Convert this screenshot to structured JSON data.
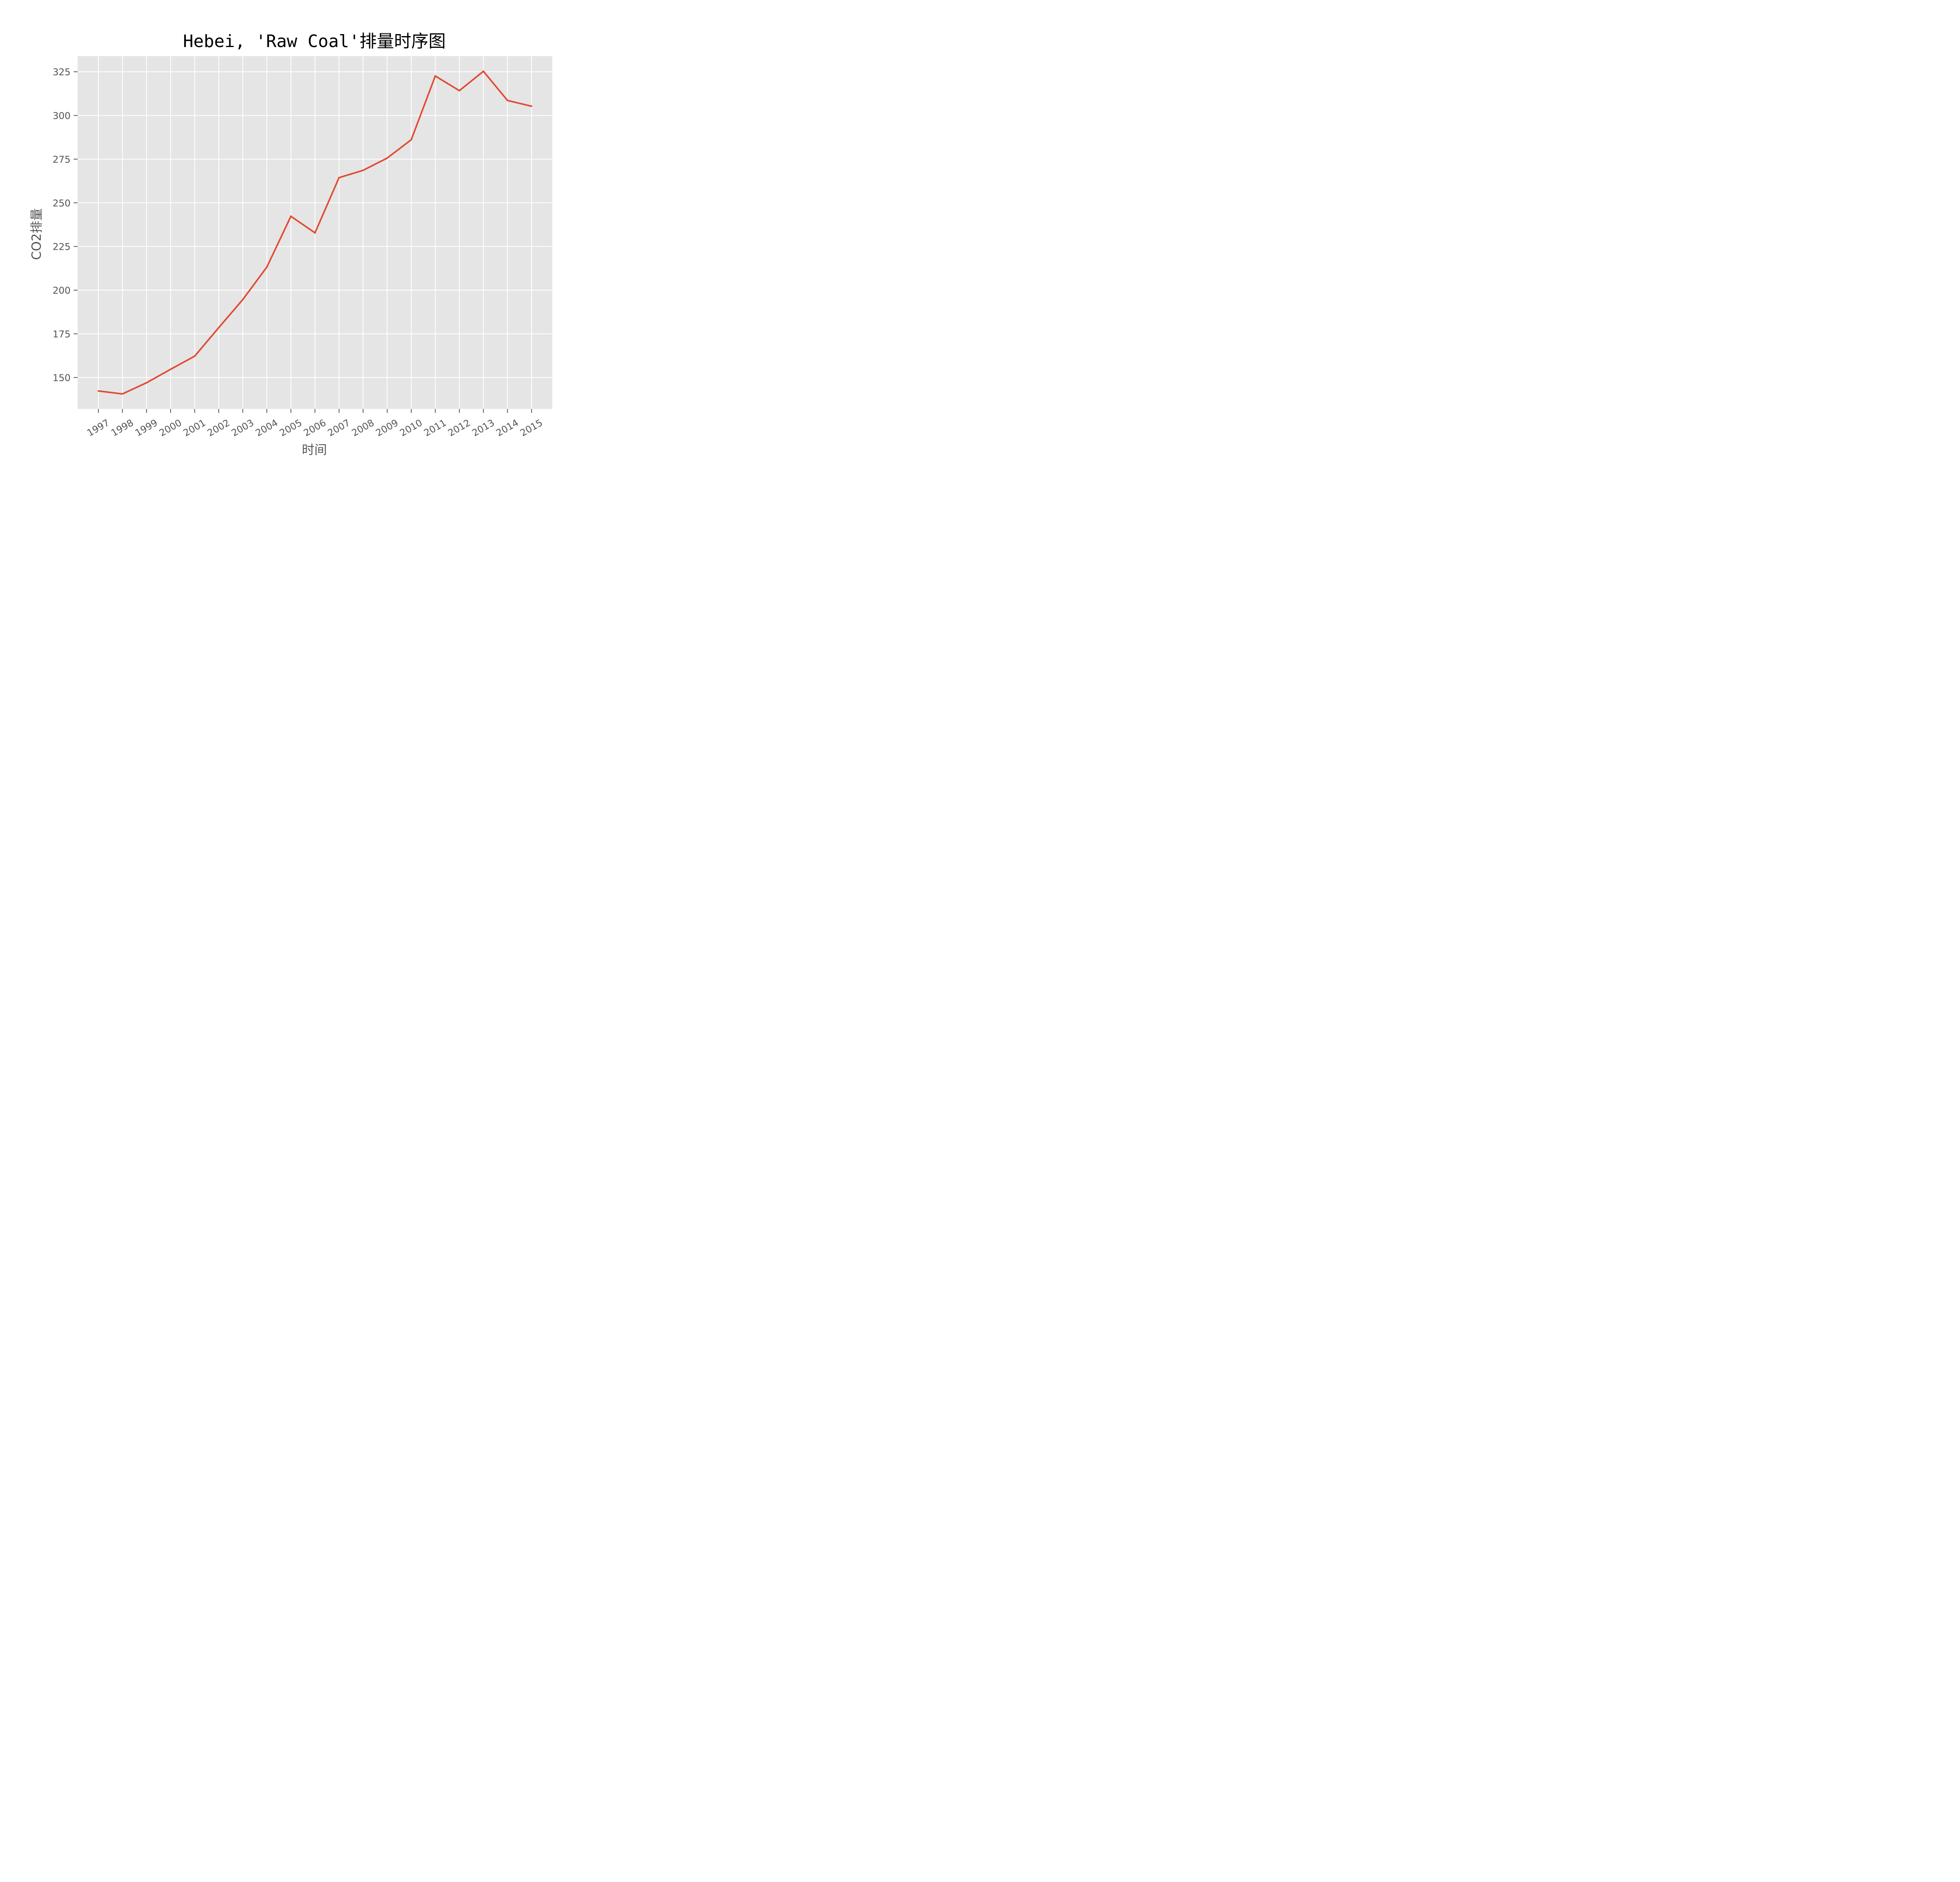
{
  "chart_data": {
    "type": "line",
    "title": "Hebei, 'Raw Coal'排量时序图",
    "xlabel": "时间",
    "ylabel": "CO2排量",
    "x": [
      "1997",
      "1998",
      "1999",
      "2000",
      "2001",
      "2002",
      "2003",
      "2004",
      "2005",
      "2006",
      "2007",
      "2008",
      "2009",
      "2010",
      "2011",
      "2012",
      "2013",
      "2014",
      "2015"
    ],
    "series": [
      {
        "values": [
          142.3,
          140.6,
          147.0,
          154.7,
          162.2,
          178.5,
          194.6,
          213.2,
          242.3,
          232.8,
          264.4,
          268.6,
          275.6,
          286.1,
          322.6,
          314.2,
          325.3,
          308.6,
          305.3
        ]
      }
    ],
    "yticks": [
      150,
      175,
      200,
      225,
      250,
      275,
      300,
      325
    ],
    "ylim": [
      132,
      334
    ],
    "grid": true,
    "colors": {
      "line": "#e24a33",
      "plot_bg": "#e5e5e5",
      "grid": "#ffffff"
    }
  }
}
